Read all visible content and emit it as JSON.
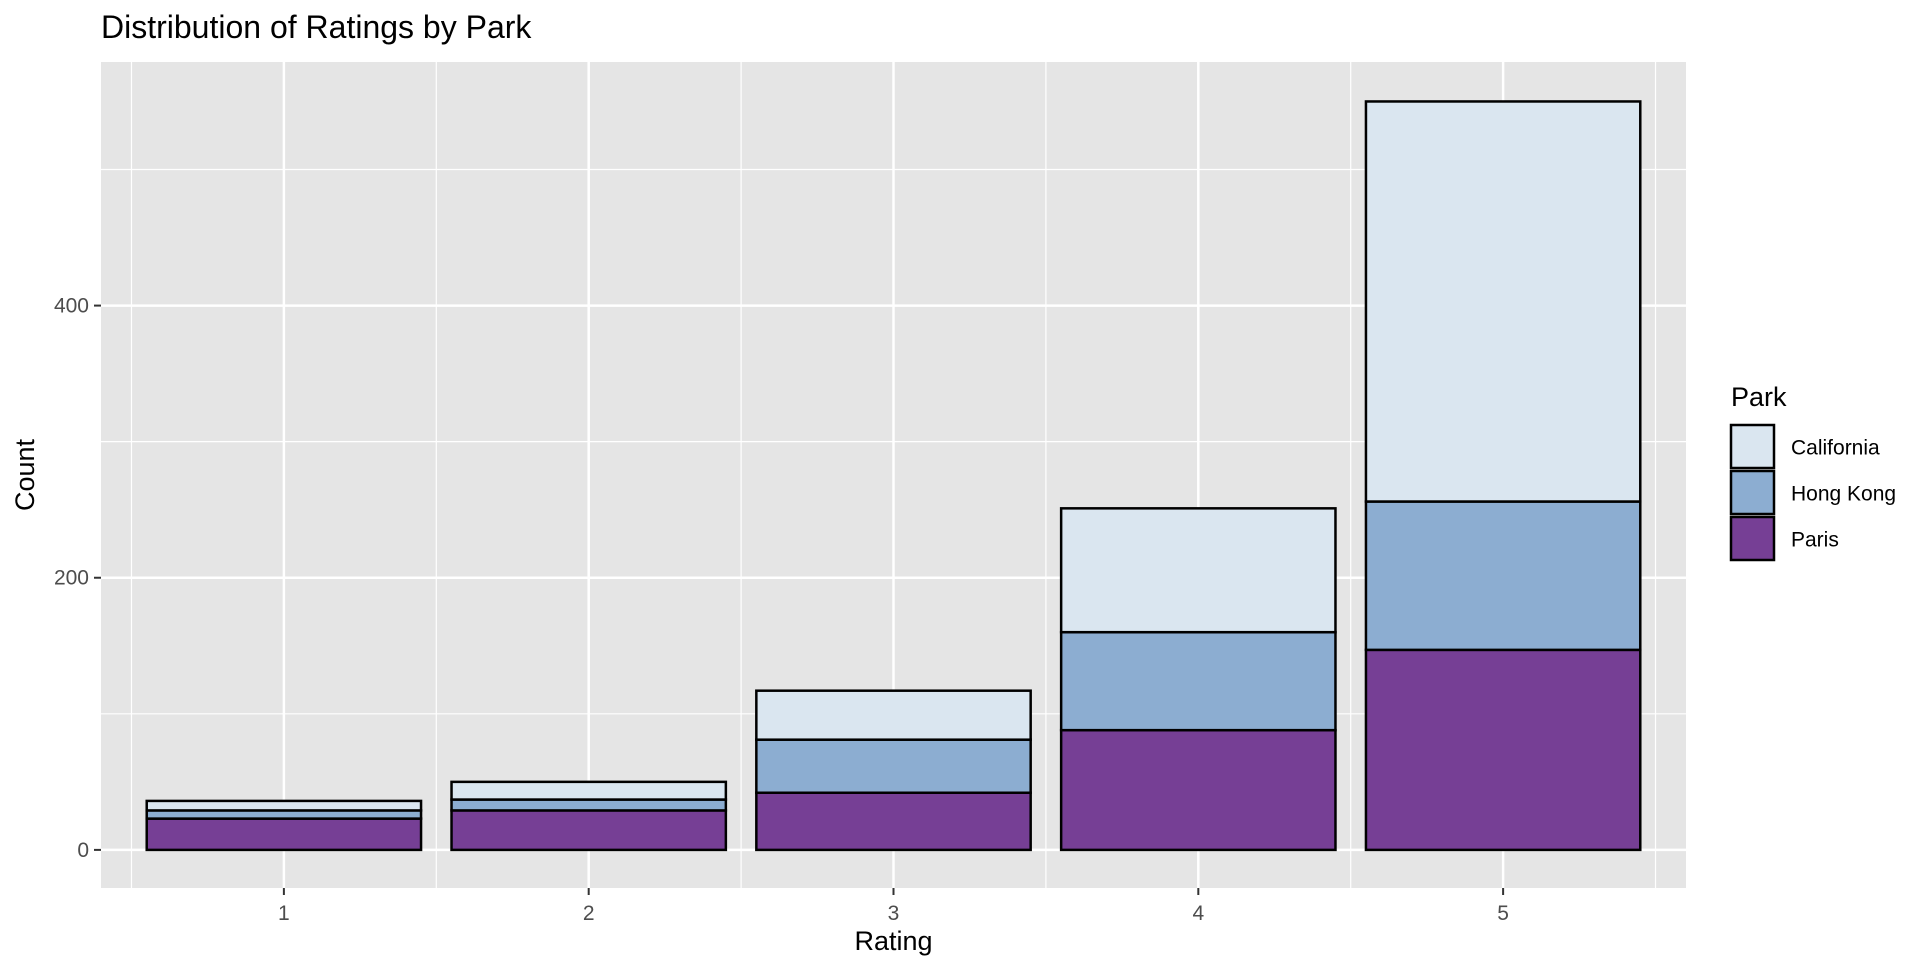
{
  "chart_data": {
    "type": "bar",
    "stacked": true,
    "title": "Distribution of Ratings by Park",
    "xlabel": "Rating",
    "ylabel": "Count",
    "categories": [
      "1",
      "2",
      "3",
      "4",
      "5"
    ],
    "series": [
      {
        "name": "Paris",
        "color": "#763F95",
        "values": [
          23,
          29,
          42,
          88,
          147
        ]
      },
      {
        "name": "Hong Kong",
        "color": "#8CADD1",
        "values": [
          6,
          8,
          39,
          72,
          109
        ]
      },
      {
        "name": "California",
        "color": "#DAE6F0",
        "values": [
          7,
          13,
          36,
          91,
          294
        ]
      }
    ],
    "ylim": [
      -28,
      579
    ],
    "yticks": [
      0,
      200,
      400
    ],
    "grid": true,
    "panel_background": "#E5E5E5",
    "grid_color": "#FFFFFF",
    "bar_outline": "#000000",
    "legend": {
      "title": "Park",
      "position": "right",
      "entries": [
        "California",
        "Hong Kong",
        "Paris"
      ]
    }
  }
}
